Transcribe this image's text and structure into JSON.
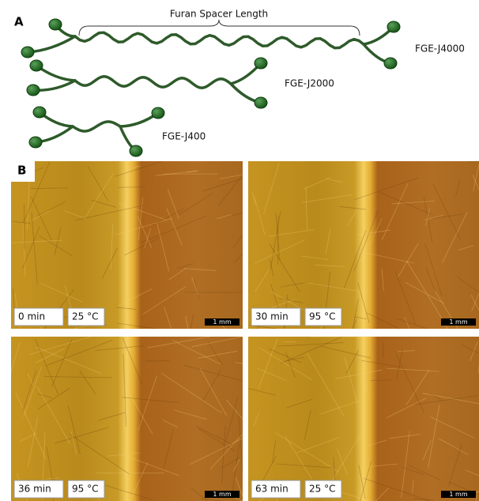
{
  "panel_a": {
    "label": "A",
    "brace_label": "Furan Spacer Length",
    "molecules": [
      {
        "label": "FGE-J4000"
      },
      {
        "label": "FGE-J2000"
      },
      {
        "label": "FGE-J400"
      }
    ]
  },
  "panel_b": {
    "label": "B",
    "images": [
      {
        "time": "0 min",
        "temperature": "25 °C",
        "scale_bar": "1 mm"
      },
      {
        "time": "30 min",
        "temperature": "95 °C",
        "scale_bar": "1 mm"
      },
      {
        "time": "36 min",
        "temperature": "95 °C",
        "scale_bar": "1 mm"
      },
      {
        "time": "63 min",
        "temperature": "25 °C",
        "scale_bar": "1 mm"
      }
    ]
  }
}
